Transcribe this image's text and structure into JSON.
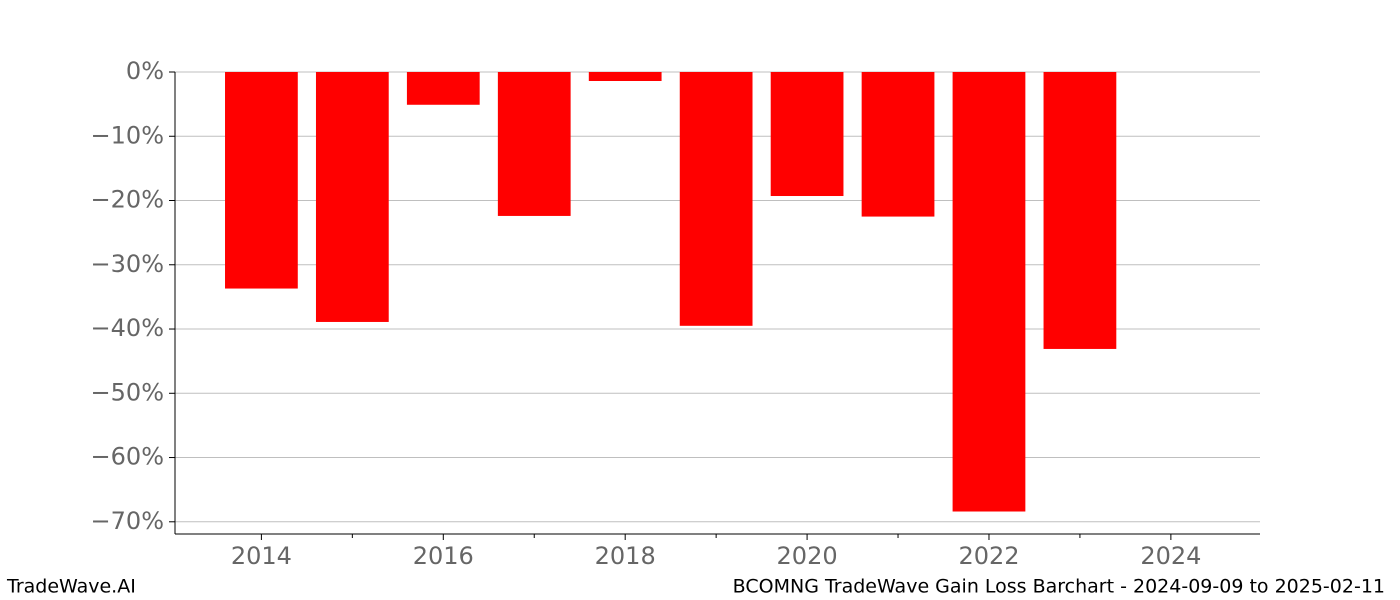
{
  "chart_data": {
    "type": "bar",
    "x": [
      2014,
      2015,
      2016,
      2017,
      2018,
      2019,
      2020,
      2021,
      2022,
      2023
    ],
    "values": [
      -33.7,
      -38.9,
      -5.1,
      -22.4,
      -1.4,
      -39.5,
      -19.3,
      -22.5,
      -68.4,
      -43.1
    ],
    "color": "#ff0000",
    "xlim": [
      2013.05,
      2024.98
    ],
    "xticks": [
      2014,
      2016,
      2018,
      2020,
      2022,
      2024
    ],
    "xminor_ticks": [
      2015,
      2017,
      2019,
      2021,
      2023
    ],
    "ylim": [
      -71.9,
      0
    ],
    "yticks": [
      {
        "value": 0,
        "label": "0%"
      },
      {
        "value": -10,
        "label": "−10%"
      },
      {
        "value": -20,
        "label": "−20%"
      },
      {
        "value": -30,
        "label": "−30%"
      },
      {
        "value": -40,
        "label": "−40%"
      },
      {
        "value": -50,
        "label": "−50%"
      },
      {
        "value": -60,
        "label": "−60%"
      },
      {
        "value": -70,
        "label": "−70%"
      }
    ],
    "grid": true,
    "footer_left": "TradeWave.AI",
    "footer_right": "BCOMNG TradeWave Gain Loss Barchart - 2024-09-09 to 2025-02-11"
  }
}
